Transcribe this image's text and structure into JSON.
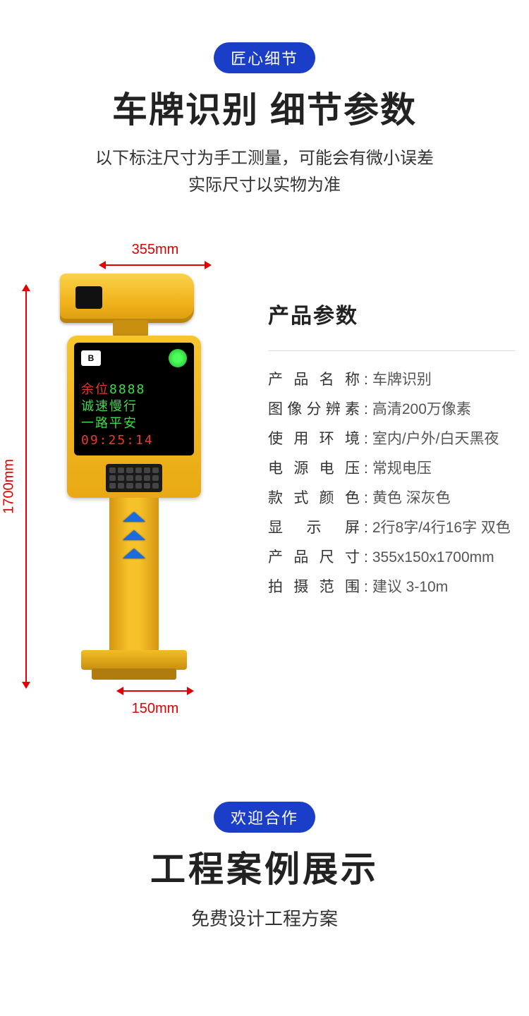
{
  "header1": {
    "pill": "匠心细节",
    "title": "车牌识别 细节参数",
    "desc_line1": "以下标注尺寸为手工测量，可能会有微小误差",
    "desc_line2": "实际尺寸以实物为准"
  },
  "dimensions": {
    "top_label": "355mm",
    "left_label": "1700mm",
    "bottom_label": "150mm"
  },
  "device_screen": {
    "logo": "B",
    "line1_a": "余位",
    "line1_b": "8888",
    "line2": "诚速慢行",
    "line3": "一路平安",
    "line4": "09:25:14"
  },
  "specs": {
    "title": "产品参数",
    "rows": [
      {
        "k": "产 品 名 称",
        "v": "车牌识别"
      },
      {
        "k": "图像分辨素",
        "v": "高清200万像素"
      },
      {
        "k": "使 用 环 境",
        "v": "室内/户外/白天黑夜"
      },
      {
        "k": "电 源 电 压",
        "v": "常规电压"
      },
      {
        "k": "款 式 颜 色",
        "v": "黄色 深灰色"
      },
      {
        "k": "显　示　屏",
        "v": "2行8字/4行16字 双色"
      },
      {
        "k": "产 品 尺 寸",
        "v": "355x150x1700mm"
      },
      {
        "k": "拍 摄 范 围",
        "v": "建议 3-10m"
      }
    ]
  },
  "header2": {
    "pill": "欢迎合作",
    "title": "工程案例展示",
    "desc": "免费设计工程方案"
  },
  "colors": {
    "pill_bg": "#1a3ec8",
    "dim_red": "#e30000",
    "device_yellow_light": "#f7c52c",
    "device_yellow_dark": "#e8a914",
    "led_red": "#e83b2e",
    "led_green": "#3ddc4a",
    "chevron_blue": "#1a6bdc"
  }
}
